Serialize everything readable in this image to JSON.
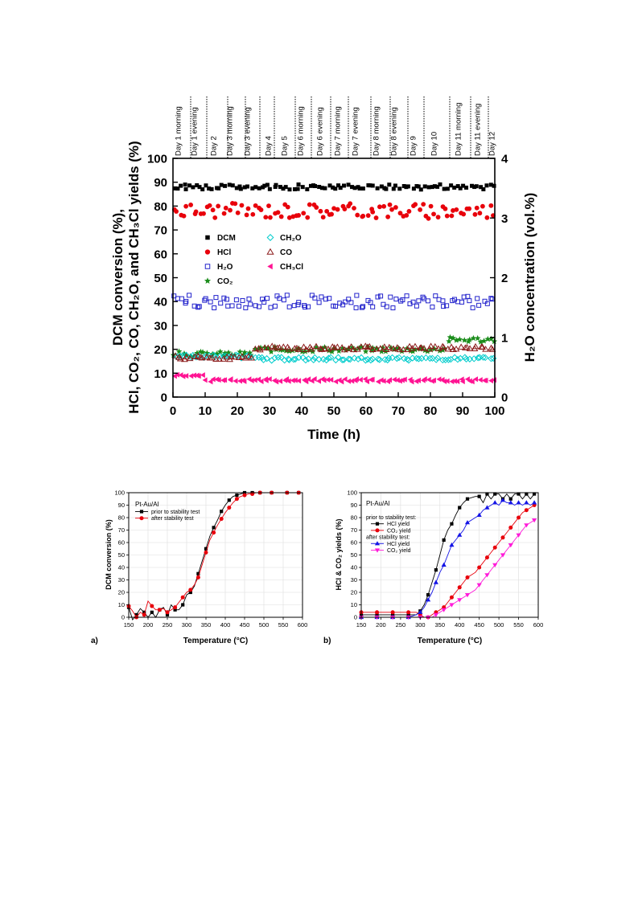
{
  "chart_data": [
    {
      "type": "scatter",
      "xlabel": "Time (h)",
      "ylabel_lines": [
        "DCM conversion (%),",
        "HCl, CO₂, CO, CH₂O, and CH₃Cl yields (%)"
      ],
      "y2label": "H₂O concentration (vol.%)",
      "xlim": [
        0,
        100
      ],
      "ylim": [
        0,
        100
      ],
      "y2lim": [
        0,
        4
      ],
      "xticks": [
        "0",
        "10",
        "20",
        "30",
        "40",
        "50",
        "60",
        "70",
        "80",
        "90",
        "100"
      ],
      "yticks": [
        "0",
        "10",
        "20",
        "30",
        "40",
        "50",
        "60",
        "70",
        "80",
        "90",
        "100"
      ],
      "y2ticks": [
        "0",
        "1",
        "2",
        "3",
        "4"
      ],
      "grid": false,
      "legend": "center-left",
      "period_labels": [
        {
          "label": "Day 1 morning",
          "at": 1.5
        },
        {
          "label": "Day 1 evening",
          "at": 6.5
        },
        {
          "label": "Day 2",
          "at": 12.5
        },
        {
          "label": "Day 3 morning",
          "at": 17.5
        },
        {
          "label": "Day 3 evening",
          "at": 23.0
        },
        {
          "label": "Day 4",
          "at": 29.5
        },
        {
          "label": "Day 5",
          "at": 34.5
        },
        {
          "label": "Day 6 morning",
          "at": 39.5
        },
        {
          "label": "Day 6 evening",
          "at": 45.5
        },
        {
          "label": "Day 7 morning",
          "at": 51.0
        },
        {
          "label": "Day 7 evening",
          "at": 56.5
        },
        {
          "label": "Day 8 morning",
          "at": 63.0
        },
        {
          "label": "Day 8 evening",
          "at": 68.5
        },
        {
          "label": "Day 9",
          "at": 74.5
        },
        {
          "label": "Day 10",
          "at": 81.0
        },
        {
          "label": "Day 11 morning",
          "at": 88.5
        },
        {
          "label": "Day 11 evening",
          "at": 94.5
        },
        {
          "label": "Day 12",
          "at": 99.0
        }
      ],
      "dividers": [
        5.5,
        10.5,
        17.0,
        22.5,
        27.0,
        31.5,
        38.0,
        43.0,
        49.0,
        54.5,
        61.5,
        67.5,
        73.0,
        78.0,
        86.0,
        92.5,
        98.0
      ],
      "series": [
        {
          "name": "DCM",
          "marker": "square",
          "color": "#000000",
          "axis": "y",
          "ranges": [
            [
              0,
              100,
              88.0
            ]
          ]
        },
        {
          "name": "HCl",
          "marker": "circle",
          "color": "#e8000b",
          "axis": "y",
          "ranges": [
            [
              0,
              100,
              78.0
            ]
          ]
        },
        {
          "name": "H₂O",
          "marker": "open-square",
          "color": "#2222cc",
          "axis": "y2",
          "ranges": [
            [
              0,
              100,
              1.6
            ]
          ]
        },
        {
          "name": "CO₂",
          "marker": "star",
          "color": "#1a8c1a",
          "axis": "y",
          "ranges": [
            [
              0,
              25,
              18.0
            ],
            [
              25,
              85,
              20.0
            ],
            [
              85,
              100,
              24.0
            ]
          ]
        },
        {
          "name": "CH₂O",
          "marker": "open-diamond",
          "color": "#00cccc",
          "axis": "y",
          "ranges": [
            [
              0,
              25,
              17.0
            ],
            [
              25,
              100,
              16.0
            ]
          ]
        },
        {
          "name": "CO",
          "marker": "open-triangle",
          "color": "#8b1a1a",
          "axis": "y",
          "ranges": [
            [
              0,
              25,
              16.5
            ],
            [
              25,
              100,
              20.5
            ]
          ]
        },
        {
          "name": "CH₃Cl",
          "marker": "left-triangle",
          "color": "#ff1493",
          "axis": "y",
          "ranges": [
            [
              0,
              10,
              9.0
            ],
            [
              10,
              100,
              7.0
            ]
          ]
        }
      ]
    },
    {
      "type": "line",
      "panel_label": "a)",
      "title": "Pt-Au/Al",
      "xlabel": "Temperature (°C)",
      "ylabel": "DCM conversion (%)",
      "xlim": [
        150,
        600
      ],
      "ylim": [
        0,
        100
      ],
      "xticks": [
        "150",
        "200",
        "250",
        "300",
        "350",
        "400",
        "450",
        "500",
        "550",
        "600"
      ],
      "yticks": [
        "0",
        "10",
        "20",
        "30",
        "40",
        "50",
        "60",
        "70",
        "80",
        "90",
        "100"
      ],
      "grid": true,
      "legend": "top-left",
      "series": [
        {
          "name": "prior to stability test",
          "marker": "square",
          "color": "#000000",
          "x": [
            150,
            160,
            170,
            180,
            190,
            200,
            210,
            220,
            230,
            240,
            250,
            260,
            270,
            280,
            290,
            300,
            310,
            320,
            330,
            340,
            350,
            360,
            370,
            380,
            390,
            400,
            410,
            420,
            430,
            440,
            450,
            460,
            470,
            480,
            490,
            500,
            520,
            540,
            560,
            580,
            590
          ],
          "y": [
            8,
            -2,
            2,
            7,
            4,
            0,
            4,
            0,
            6,
            8,
            2,
            10,
            6,
            6,
            10,
            18,
            20,
            25,
            35,
            45,
            55,
            65,
            72,
            78,
            85,
            90,
            94,
            97,
            98,
            99,
            100,
            100,
            100,
            100,
            100,
            100,
            100,
            100,
            100,
            100,
            100
          ]
        },
        {
          "name": "after stability test",
          "marker": "circle",
          "color": "#e8000b",
          "x": [
            150,
            160,
            170,
            180,
            190,
            200,
            210,
            220,
            230,
            240,
            250,
            260,
            270,
            280,
            290,
            300,
            310,
            320,
            330,
            340,
            350,
            360,
            370,
            380,
            390,
            400,
            410,
            420,
            430,
            440,
            450,
            460,
            470,
            480,
            490,
            500,
            520,
            540,
            560,
            580,
            590
          ],
          "y": [
            9,
            5,
            0,
            4,
            2,
            13,
            9,
            6,
            6,
            7,
            4,
            6,
            8,
            12,
            16,
            20,
            22,
            26,
            32,
            42,
            52,
            62,
            68,
            74,
            79,
            84,
            88,
            92,
            95,
            97,
            98,
            99,
            99,
            100,
            100,
            100,
            100,
            100,
            100,
            100,
            100
          ]
        }
      ]
    },
    {
      "type": "line",
      "panel_label": "b)",
      "title": "Pt-Au/Al",
      "xlabel": "Temperature (°C)",
      "ylabel": "HCl & CO₂ yields (%)",
      "xlim": [
        150,
        600
      ],
      "ylim": [
        0,
        100
      ],
      "xticks": [
        "150",
        "200",
        "250",
        "300",
        "350",
        "400",
        "450",
        "500",
        "550",
        "600"
      ],
      "yticks": [
        "0",
        "10",
        "20",
        "30",
        "40",
        "50",
        "60",
        "70",
        "80",
        "90",
        "100"
      ],
      "grid": true,
      "legend": "top-left",
      "legend_headers": [
        "prior to stability test:",
        "after stability test:"
      ],
      "series": [
        {
          "name": "HCl yield",
          "group": 0,
          "marker": "square",
          "color": "#000000",
          "x": [
            150,
            170,
            190,
            210,
            230,
            250,
            270,
            290,
            300,
            310,
            320,
            330,
            340,
            350,
            360,
            370,
            380,
            390,
            400,
            410,
            420,
            440,
            450,
            460,
            470,
            480,
            490,
            500,
            510,
            520,
            530,
            540,
            550,
            560,
            570,
            580,
            590
          ],
          "y": [
            2,
            2,
            2,
            2,
            2,
            2,
            2,
            2,
            5,
            10,
            18,
            28,
            38,
            50,
            62,
            70,
            75,
            82,
            88,
            92,
            95,
            97,
            97,
            92,
            99,
            95,
            99,
            99,
            95,
            99,
            95,
            99,
            99,
            95,
            99,
            95,
            99
          ]
        },
        {
          "name": "CO₂ yield",
          "group": 0,
          "marker": "circle",
          "color": "#e8000b",
          "x": [
            150,
            170,
            190,
            210,
            230,
            250,
            270,
            290,
            300,
            310,
            320,
            330,
            340,
            350,
            360,
            370,
            380,
            390,
            400,
            410,
            420,
            440,
            450,
            460,
            470,
            480,
            490,
            500,
            510,
            520,
            530,
            540,
            550,
            560,
            570,
            580,
            590
          ],
          "y": [
            4,
            4,
            4,
            4,
            4,
            4,
            4,
            4,
            2,
            0,
            0,
            2,
            4,
            6,
            8,
            12,
            16,
            20,
            24,
            28,
            32,
            36,
            40,
            44,
            48,
            52,
            56,
            60,
            64,
            68,
            72,
            76,
            80,
            84,
            86,
            88,
            90
          ]
        },
        {
          "name": "HCl yield",
          "group": 1,
          "marker": "triangle-up",
          "color": "#1414e6",
          "x": [
            150,
            170,
            190,
            210,
            230,
            250,
            270,
            290,
            300,
            310,
            320,
            330,
            340,
            350,
            360,
            370,
            380,
            390,
            400,
            410,
            420,
            440,
            450,
            460,
            470,
            480,
            490,
            500,
            510,
            520,
            530,
            540,
            550,
            560,
            570,
            580,
            590
          ],
          "y": [
            0,
            0,
            0,
            0,
            0,
            0,
            0,
            2,
            4,
            8,
            14,
            20,
            28,
            36,
            42,
            50,
            58,
            62,
            66,
            70,
            76,
            80,
            82,
            86,
            88,
            90,
            92,
            90,
            94,
            92,
            92,
            90,
            92,
            90,
            92,
            90,
            92
          ]
        },
        {
          "name": "CO₂ yield",
          "group": 1,
          "marker": "triangle-down",
          "color": "#ff1ad9",
          "x": [
            150,
            170,
            190,
            210,
            230,
            250,
            270,
            290,
            300,
            310,
            320,
            330,
            340,
            350,
            360,
            370,
            380,
            390,
            400,
            410,
            420,
            440,
            450,
            460,
            470,
            480,
            490,
            500,
            510,
            520,
            530,
            540,
            550,
            560,
            570,
            580,
            590
          ],
          "y": [
            0,
            0,
            0,
            0,
            0,
            0,
            0,
            0,
            0,
            0,
            0,
            0,
            2,
            4,
            6,
            8,
            10,
            12,
            14,
            16,
            18,
            22,
            26,
            30,
            34,
            38,
            42,
            46,
            50,
            54,
            58,
            62,
            66,
            70,
            74,
            76,
            78
          ]
        }
      ]
    }
  ]
}
